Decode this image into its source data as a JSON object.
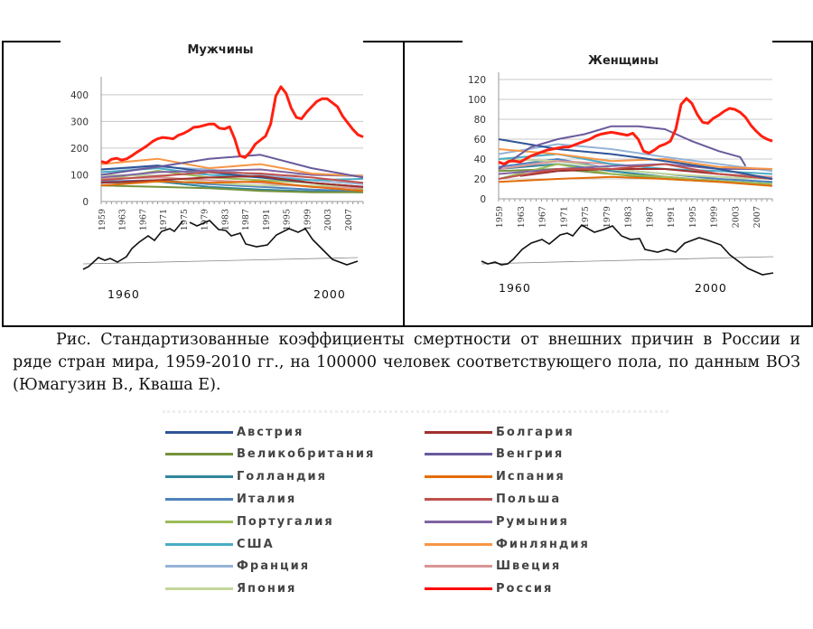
{
  "charts_common": {
    "x_ticks": [
      "1959",
      "1963",
      "1967",
      "1971",
      "1975",
      "1979",
      "1983",
      "1987",
      "1991",
      "1995",
      "1999",
      "2003",
      "2007"
    ],
    "cycle_labels": [
      "1960",
      "2000"
    ]
  },
  "chart_data": [
    {
      "type": "line",
      "title": "Мужчины",
      "xlim": [
        1959,
        2010
      ],
      "ylim": [
        0,
        440
      ],
      "yticks": [
        0,
        100,
        200,
        300,
        400
      ],
      "grid": true,
      "series": [
        {
          "name": "Россия",
          "color": "#ff2010",
          "years": [
            1959,
            1960,
            1961,
            1962,
            1963,
            1964,
            1965,
            1966,
            1967,
            1968,
            1969,
            1970,
            1971,
            1972,
            1973,
            1974,
            1975,
            1976,
            1977,
            1978,
            1979,
            1980,
            1981,
            1982,
            1983,
            1984,
            1985,
            1986,
            1987,
            1988,
            1989,
            1990,
            1991,
            1992,
            1993,
            1994,
            1995,
            1996,
            1997,
            1998,
            1999,
            2000,
            2001,
            2002,
            2003,
            2004,
            2005,
            2006,
            2007,
            2008,
            2009,
            2010
          ],
          "values": [
            150,
            145,
            158,
            162,
            155,
            160,
            172,
            185,
            197,
            210,
            225,
            235,
            240,
            238,
            235,
            248,
            255,
            265,
            278,
            280,
            285,
            290,
            290,
            275,
            272,
            280,
            235,
            172,
            165,
            185,
            215,
            230,
            245,
            290,
            395,
            430,
            405,
            350,
            315,
            310,
            335,
            355,
            375,
            385,
            385,
            370,
            355,
            320,
            295,
            270,
            250,
            242
          ]
        },
        {
          "name": "Венгрия",
          "color": "#6a5a9c",
          "years": [
            1959,
            1970,
            1980,
            1990,
            2000,
            2010
          ],
          "values": [
            100,
            130,
            160,
            175,
            125,
            90
          ]
        },
        {
          "name": "Финляндия",
          "color": "#f79646",
          "years": [
            1959,
            1970,
            1980,
            1990,
            2000,
            2010
          ],
          "values": [
            140,
            160,
            125,
            140,
            105,
            95
          ]
        },
        {
          "name": "Испания",
          "color": "#e36c0a",
          "years": [
            1959,
            1970,
            1980,
            1990,
            2000,
            2010
          ],
          "values": [
            60,
            75,
            70,
            75,
            55,
            40
          ]
        },
        {
          "name": "Польша",
          "color": "#c0504d",
          "years": [
            1959,
            1970,
            1980,
            1990,
            2000,
            2010
          ],
          "values": [
            80,
            95,
            110,
            105,
            90,
            70
          ]
        },
        {
          "name": "Болгария",
          "color": "#a0302c",
          "years": [
            1959,
            1970,
            1980,
            1990,
            2000,
            2010
          ],
          "values": [
            70,
            80,
            90,
            95,
            70,
            55
          ]
        },
        {
          "name": "Румыния",
          "color": "#8064a2",
          "years": [
            1959,
            1970,
            1980,
            1990,
            2000,
            2010
          ],
          "values": [
            90,
            110,
            115,
            120,
            100,
            95
          ]
        },
        {
          "name": "Австрия",
          "color": "#2f5597",
          "years": [
            1959,
            1970,
            1980,
            1990,
            2000,
            2010
          ],
          "values": [
            120,
            135,
            110,
            90,
            70,
            55
          ]
        },
        {
          "name": "США",
          "color": "#4bacc6",
          "years": [
            1959,
            1970,
            1980,
            1990,
            2000,
            2010
          ],
          "values": [
            110,
            125,
            100,
            90,
            80,
            85
          ]
        },
        {
          "name": "Франция",
          "color": "#95b3d7",
          "years": [
            1959,
            1970,
            1980,
            1990,
            2000,
            2010
          ],
          "values": [
            120,
            130,
            120,
            100,
            80,
            65
          ]
        },
        {
          "name": "Швеция",
          "color": "#d99694",
          "years": [
            1959,
            1970,
            1980,
            1990,
            2000,
            2010
          ],
          "values": [
            85,
            90,
            80,
            70,
            55,
            50
          ]
        },
        {
          "name": "Япония",
          "color": "#c3d69b",
          "years": [
            1959,
            1970,
            1980,
            1990,
            2000,
            2010
          ],
          "values": [
            100,
            95,
            70,
            60,
            60,
            55
          ]
        },
        {
          "name": "Португалия",
          "color": "#9bbb59",
          "years": [
            1959,
            1970,
            1980,
            1990,
            2000,
            2010
          ],
          "values": [
            80,
            115,
            90,
            80,
            70,
            45
          ]
        },
        {
          "name": "Великобритания",
          "color": "#76923c",
          "years": [
            1959,
            1970,
            1980,
            1990,
            2000,
            2010
          ],
          "values": [
            60,
            55,
            50,
            40,
            35,
            35
          ]
        },
        {
          "name": "Голландия",
          "color": "#31859c",
          "years": [
            1959,
            1970,
            1980,
            1990,
            2000,
            2010
          ],
          "values": [
            70,
            75,
            55,
            45,
            38,
            35
          ]
        },
        {
          "name": "Италия",
          "color": "#4f81bd",
          "years": [
            1959,
            1970,
            1980,
            1990,
            2000,
            2010
          ],
          "values": [
            75,
            80,
            65,
            55,
            45,
            38
          ]
        }
      ]
    },
    {
      "type": "line",
      "title": "Женщины",
      "xlim": [
        1959,
        2010
      ],
      "ylim": [
        0,
        120
      ],
      "yticks": [
        0,
        20,
        40,
        60,
        80,
        100,
        120
      ],
      "grid": true,
      "series": [
        {
          "name": "Россия",
          "color": "#ff2010",
          "years": [
            1959,
            1960,
            1961,
            1962,
            1963,
            1964,
            1965,
            1966,
            1967,
            1968,
            1969,
            1970,
            1971,
            1972,
            1973,
            1974,
            1975,
            1976,
            1977,
            1978,
            1979,
            1980,
            1981,
            1982,
            1983,
            1984,
            1985,
            1986,
            1987,
            1988,
            1989,
            1990,
            1991,
            1992,
            1993,
            1994,
            1995,
            1996,
            1997,
            1998,
            1999,
            2000,
            2001,
            2002,
            2003,
            2004,
            2005,
            2006,
            2007,
            2008,
            2009,
            2010
          ],
          "values": [
            37,
            35,
            38,
            38,
            37,
            40,
            43,
            45,
            47,
            49,
            50,
            51,
            52,
            52,
            54,
            56,
            58,
            60,
            63,
            65,
            66,
            67,
            66,
            65,
            64,
            66,
            60,
            48,
            46,
            49,
            53,
            55,
            58,
            70,
            95,
            101,
            96,
            85,
            77,
            76,
            81,
            84,
            88,
            91,
            90,
            87,
            82,
            74,
            68,
            63,
            60,
            58
          ]
        },
        {
          "name": "Венгрия",
          "color": "#6a5a9c",
          "years": [
            1959,
            1965,
            1970,
            1975,
            1980,
            1985,
            1990,
            1995,
            2000,
            2004,
            2005
          ],
          "values": [
            30,
            52,
            60,
            65,
            73,
            73,
            70,
            58,
            48,
            42,
            33
          ]
        },
        {
          "name": "Австрия",
          "color": "#2f5597",
          "years": [
            1959,
            1970,
            1980,
            1990,
            2000,
            2010
          ],
          "values": [
            60,
            50,
            45,
            38,
            30,
            20
          ]
        },
        {
          "name": "Финляндия",
          "color": "#f79646",
          "years": [
            1959,
            1970,
            1980,
            1990,
            2000,
            2010
          ],
          "values": [
            50,
            45,
            38,
            40,
            32,
            30
          ]
        },
        {
          "name": "Испания",
          "color": "#e36c0a",
          "years": [
            1959,
            1970,
            1980,
            1990,
            2000,
            2010
          ],
          "values": [
            17,
            20,
            22,
            20,
            17,
            13
          ]
        },
        {
          "name": "Польша",
          "color": "#c0504d",
          "years": [
            1959,
            1970,
            1980,
            1990,
            2000,
            2010
          ],
          "values": [
            20,
            30,
            30,
            35,
            25,
            20
          ]
        },
        {
          "name": "Болгария",
          "color": "#a0302c",
          "years": [
            1963,
            1970,
            1980,
            1990,
            2000,
            2010
          ],
          "values": [
            23,
            28,
            30,
            30,
            25,
            20
          ]
        },
        {
          "name": "Румыния",
          "color": "#8064a2",
          "years": [
            1959,
            1970,
            1980,
            1990,
            2000,
            2010
          ],
          "values": [
            25,
            30,
            33,
            35,
            30,
            30
          ]
        },
        {
          "name": "США",
          "color": "#4bacc6",
          "years": [
            1959,
            1970,
            1980,
            1990,
            2000,
            2010
          ],
          "values": [
            40,
            45,
            35,
            30,
            28,
            25
          ]
        },
        {
          "name": "Франция",
          "color": "#95b3d7",
          "years": [
            1959,
            1970,
            1980,
            1990,
            2000,
            2010
          ],
          "values": [
            45,
            55,
            50,
            42,
            35,
            28
          ]
        },
        {
          "name": "Швеция",
          "color": "#d99694",
          "years": [
            1959,
            1970,
            1980,
            1990,
            2000,
            2010
          ],
          "values": [
            30,
            38,
            35,
            30,
            25,
            22
          ]
        },
        {
          "name": "Япония",
          "color": "#c3d69b",
          "years": [
            1959,
            1970,
            1980,
            1990,
            2000,
            2010
          ],
          "values": [
            40,
            38,
            30,
            25,
            22,
            20
          ]
        },
        {
          "name": "Португалия",
          "color": "#9bbb59",
          "years": [
            1959,
            1970,
            1980,
            1990,
            2000,
            2010
          ],
          "values": [
            20,
            35,
            25,
            22,
            18,
            15
          ]
        },
        {
          "name": "Великобритания",
          "color": "#76923c",
          "years": [
            1959,
            1970,
            1980,
            1990,
            2000,
            2010
          ],
          "values": [
            28,
            30,
            25,
            20,
            17,
            15
          ]
        },
        {
          "name": "Голландия",
          "color": "#31859c",
          "years": [
            1959,
            1970,
            1980,
            1990,
            2000,
            2010
          ],
          "values": [
            30,
            35,
            28,
            22,
            18,
            15
          ]
        },
        {
          "name": "Италия",
          "color": "#4f81bd",
          "years": [
            1959,
            1970,
            1980,
            1990,
            2000,
            2010
          ],
          "values": [
            32,
            40,
            30,
            25,
            20,
            17
          ]
        }
      ]
    }
  ],
  "caption": {
    "prefix": "Рис.",
    "text": " Стандартизованные коэффициенты смертности от внешних причин в России и ряде стран мира, 1959-2010 гг., на 100000 человек соответствующего пола, по данным ВОЗ   (Юмагузин В., Кваша Е)."
  },
  "legend": [
    {
      "label": "Австрия",
      "color": "#2f5597"
    },
    {
      "label": "Болгария",
      "color": "#a0302c"
    },
    {
      "label": "Великобритания",
      "color": "#76923c"
    },
    {
      "label": "Венгрия",
      "color": "#6a5a9c"
    },
    {
      "label": "Голландия",
      "color": "#31859c"
    },
    {
      "label": "Испания",
      "color": "#e36c0a"
    },
    {
      "label": "Италия",
      "color": "#4f81bd"
    },
    {
      "label": "Польша",
      "color": "#c0504d"
    },
    {
      "label": "Португалия",
      "color": "#9bbb59"
    },
    {
      "label": "Румыния",
      "color": "#8064a2"
    },
    {
      "label": "США",
      "color": "#4bacc6"
    },
    {
      "label": "Финляндия",
      "color": "#f79646"
    },
    {
      "label": "Франция",
      "color": "#95b3d7"
    },
    {
      "label": "Швеция",
      "color": "#d99694"
    },
    {
      "label": "Япония",
      "color": "#c3d69b"
    },
    {
      "label": "Россия",
      "color": "#ff0000"
    }
  ]
}
